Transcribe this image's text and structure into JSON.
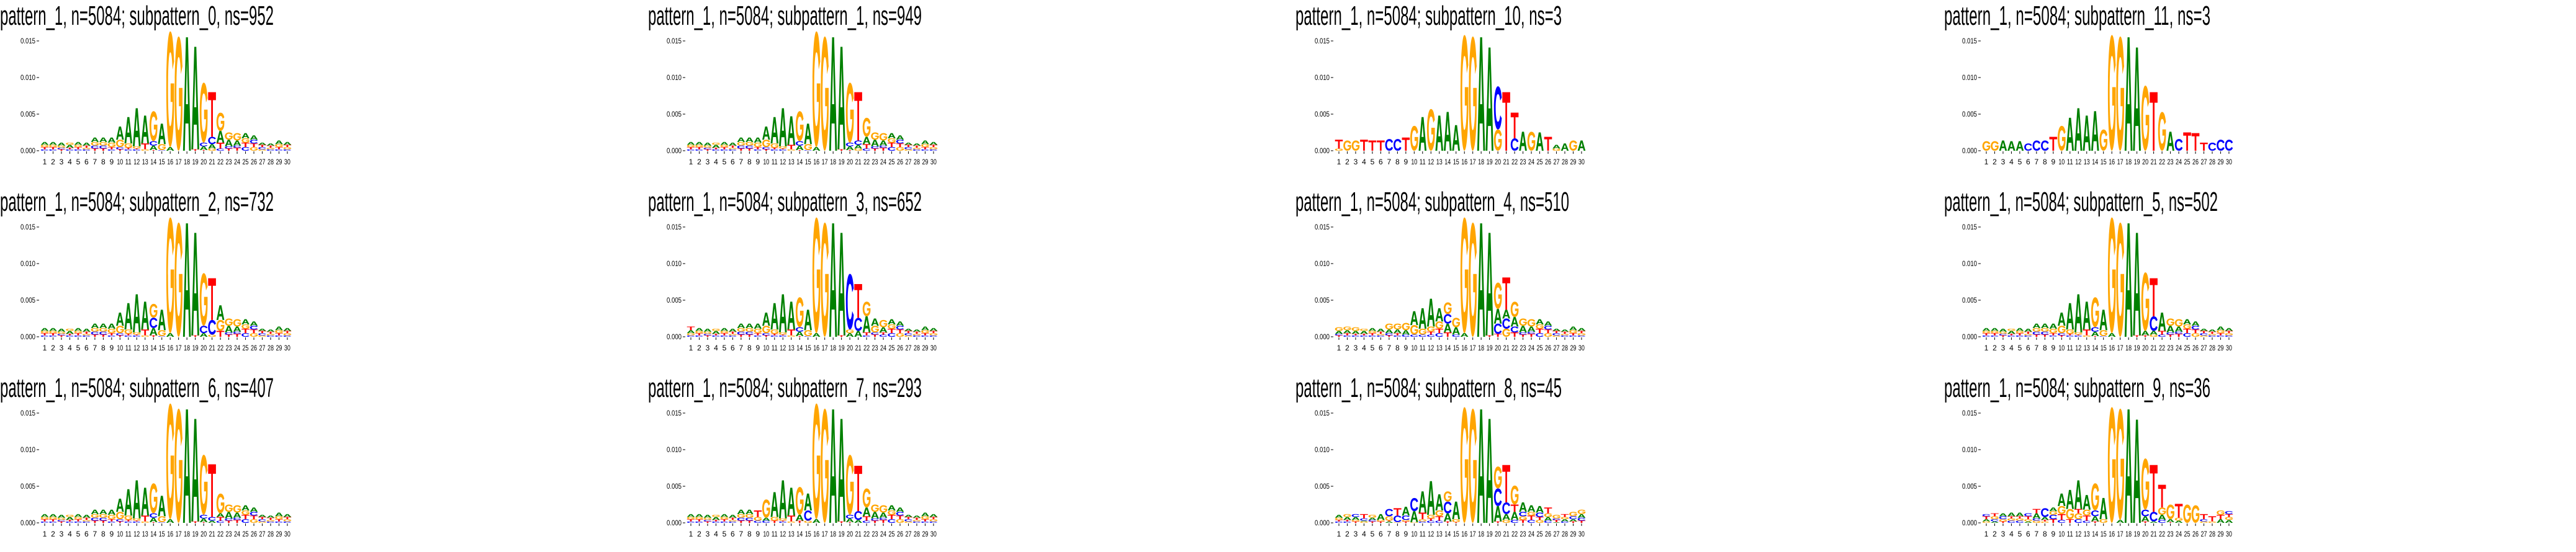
{
  "figure": {
    "grid_order": [
      "subpattern_0",
      "subpattern_1",
      "subpattern_10",
      "subpattern_11",
      "subpattern_2",
      "subpattern_3",
      "subpattern_4",
      "subpattern_5",
      "subpattern_6",
      "subpattern_7",
      "subpattern_8",
      "subpattern_9"
    ]
  },
  "colors": {
    "A": "#008000",
    "C": "#0000ff",
    "G": "#ffa500",
    "T": "#ff0000"
  },
  "axis": {
    "unit": 0.001,
    "ylim": [
      0,
      0.016
    ],
    "yticks": [
      0,
      0.005,
      0.01,
      0.015
    ],
    "ytick_labels": [
      "0.000",
      "0.005",
      "0.010",
      "0.015"
    ],
    "positions": [
      1,
      2,
      3,
      4,
      5,
      6,
      7,
      8,
      9,
      10,
      11,
      12,
      13,
      14,
      15,
      16,
      17,
      18,
      19,
      20,
      21,
      22,
      23,
      24,
      25,
      26,
      27,
      28,
      29,
      30
    ]
  },
  "default_stacks": [
    "C0.2 T0.3 G0.3 A0.4",
    "C0.2 T0.3 G0.3 A0.4",
    "T0.2 C0.2 G0.3 A0.4",
    "C0.2 T0.2 A0.4 G0.3",
    "C0.2 T0.3 G0.3 A0.4",
    "C0.2 G0.2 T0.3 A0.4",
    "T0.3 C0.4 G0.5 A0.6",
    "T0.3 C0.4 G0.5 A0.6",
    "C0.2 T0.3 G0.6 A0.7",
    "T0.2 C0.3 G1.0 A1.8",
    "C0.2 T0.2 G0.6 A3.6",
    "C0.2 T0.1 G0.3 A5.2",
    "G0.2 T0.8 A3.8",
    "T0.1 A0.6 C0.6 G4.1",
    "C0.1 G0.8 A2.8",
    "A0.5 G15.8",
    "G15.6",
    "A15.5",
    "T0.2 A14.0",
    "T0.1 A0.5 C0.5 G8.2",
    "G0.3 A0.6 C1.0 T6.1",
    "C0.3 T0.8 A1.6 G2.5",
    "T0.3 C0.3 A0.9 G1.0",
    "T0.4 C0.3 A0.7 G1.0",
    "C0.5 T0.6 G0.6 A0.7",
    "G0.5 T0.5 C0.5 A0.6",
    "G0.2 C0.3 T0.3 A0.3",
    "C0.2 G0.2 T0.3 A0.3",
    "C0.2 T0.3 G0.4 A0.5",
    "C0.2 G0.3 T0.3 A0.4"
  ],
  "chart_data": [
    {
      "type": "sequence_logo",
      "title": "pattern_1, n=5084; subpattern_0, ns=952",
      "overrides": {}
    },
    {
      "type": "sequence_logo",
      "title": "pattern_1, n=5084; subpattern_1, ns=949",
      "overrides": {
        "13": "G0.2 T0.6 A3.9",
        "21": "G0.3 A0.5 C0.6 T6.6",
        "22": "C0.3 T0.6 A1.0 G2.6"
      }
    },
    {
      "type": "sequence_logo",
      "title": "pattern_1, n=5084; subpattern_10, ns=3",
      "stacks": [
        "G0.3 T1.2",
        "G1.4",
        "G1.4",
        "T1.5",
        "T1.4",
        "T1.4",
        "C1.6",
        "C1.6",
        "T1.8",
        "G3.4",
        "A4.6",
        "G5.7",
        "A4.8",
        "A5.3",
        "A3.5",
        "G15.8",
        "G15.6",
        "A15.5",
        "A14.1",
        "G2.9 C5.9",
        "T8.0",
        "C1.7 T3.5",
        "A2.6",
        "G2.6",
        "A2.5",
        "T1.9",
        "G0.3 A0.5",
        "A1.0",
        "G1.4",
        "A1.4"
      ]
    },
    {
      "type": "sequence_logo",
      "title": "pattern_1, n=5084; subpattern_11, ns=3",
      "stacks": [
        "G1.3",
        "G1.3",
        "A1.4",
        "A1.3",
        "A1.3",
        "C1.0",
        "C1.4",
        "C1.4",
        "T1.9",
        "G3.4",
        "A4.5",
        "A5.8",
        "A4.8",
        "A5.4",
        "G2.9",
        "G15.8",
        "G15.6",
        "A15.5",
        "A14.1",
        "G8.9",
        "T8.0",
        "G5.3",
        "A2.6",
        "C1.6",
        "T2.5",
        "T2.4",
        "T1.1",
        "C1.1",
        "C1.5",
        "C1.5"
      ]
    },
    {
      "type": "sequence_logo",
      "title": "pattern_1, n=5084; subpattern_2, ns=732",
      "overrides": {
        "14": "T0.2 A1.0 C1.4 G1.9",
        "20": "A0.5 C1.0 G7.2",
        "21": "G0.3 C2.0 T5.7",
        "22": "T0.8 G1.5 A2.0"
      }
    },
    {
      "type": "sequence_logo",
      "title": "pattern_1, n=5084; subpattern_3, ns=652",
      "overrides": {
        "1": "C0.2 G0.3 A0.4 T0.5",
        "20": "A0.5 G0.5 C7.6",
        "21": "A0.8 C1.8 T4.6",
        "22": "C0.2 T0.4 A2.2 G2.0",
        "23": "T0.3 C0.3 G0.9 A1.0",
        "24": "C0.3 T0.3 A0.7 G1.0"
      }
    },
    {
      "type": "sequence_logo",
      "title": "pattern_1, n=5084; subpattern_4, ns=510",
      "overrides": {
        "1": "T0.2 C0.2 A0.4 G0.5",
        "2": "C0.2 T0.3 A0.4 G0.5",
        "3": "C0.2 T0.2 A0.4 G0.5",
        "7": "T0.2 C0.3 A0.5 G0.8",
        "8": "C0.2 T0.3 A0.5 G0.8",
        "9": "C0.3 A0.6 G1.0",
        "10": "C0.3 G1.3 A1.9",
        "11": "C0.3 G0.8 A2.8",
        "12": "C0.3 T0.4 G0.7 A3.8",
        "13": "C0.5 T0.6 G1.0 A1.8",
        "14": "T0.6 A1.2 C1.3 G1.6",
        "15": "C0.3 A1.0 G1.3",
        "20": "T0.4 C1.4 A2.0 G3.6",
        "21": "G1.1 C1.4 A1.2 T4.4",
        "22": "T0.6 C0.8 A1.3 G2.1"
      }
    },
    {
      "type": "sequence_logo",
      "title": "pattern_1, n=5084; subpattern_5, ns=502",
      "overrides": {
        "20": "T0.2 A0.6 G8.0",
        "21": "G0.3 A0.5 C2.0 T5.2",
        "22": "C0.3 T0.5 A2.5"
      }
    },
    {
      "type": "sequence_logo",
      "title": "pattern_1, n=5084; subpattern_6, ns=407",
      "overrides": {
        "21": "A0.3 C0.5 T7.2",
        "22": "C0.3 T0.5 A0.5 G2.7"
      }
    },
    {
      "type": "sequence_logo",
      "title": "pattern_1, n=5084; subpattern_7, ns=293",
      "overrides": {
        "9": "C0.3 G0.5 T0.9",
        "10": "C0.3 A0.4 G2.5",
        "11": "T0.3 G0.5 A3.4",
        "14": "T0.3 A0.8 G3.8",
        "15": "G0.3 C1.4 A2.3",
        "21": "A0.4 C1.2 T6.2",
        "22": "C0.3 T0.6 A1.2 G2.6"
      }
    },
    {
      "type": "sequence_logo",
      "title": "pattern_1, n=5084; subpattern_8, ns=45",
      "stacks": [
        "C0.2 T0.2 G0.3 A0.4",
        "C0.2 T0.2 A0.4 G0.4",
        "T0.2 G0.2 A0.4 C0.4",
        "G0.2 A0.1 C0.3 T0.6",
        "T0.2 C0.2 A0.3 G0.4",
        "T0.2 G0.2 A0.8",
        "A0.2 T0.1 G0.6 C1.0",
        "G0.1 C0.9 T1.0",
        "T0.2 G0.2 C0.6 A1.2",
        "G0.1 A1.5 C1.8",
        "C0.2 G0.3 T0.9 A2.9",
        "C0.3 T0.3 G0.5 A4.6",
        "C0.3 T0.6 G0.8 A2.2",
        "T0.2 A1.1 C1.6 G1.4",
        "T0.1 G0.4 A2.4",
        "G15.8",
        "G15.6",
        "A15.5",
        "A14.2",
        "T0.2 A2.1 C2.4 G3.0",
        "G0.4 A0.8 C1.6 T5.1",
        "C0.4 A1.1 T1.0 G2.6",
        "T0.4 G0.5 C0.6 A1.3",
        "C0.4 T0.6 G0.5 A0.9",
        "G0.4 T0.4 C0.6 A0.9",
        "C0.3 A0.5 G0.5 T0.8",
        "A0.1 T0.3 C0.2 G0.5",
        "C0.2 A0.3 G0.3 T0.4",
        "T0.2 A0.3 C0.4 G0.6",
        "T0.3 C0.4 A0.5 G0.6"
      ]
    },
    {
      "type": "sequence_logo",
      "title": "pattern_1, n=5084; subpattern_9, ns=36",
      "stacks": [
        "G0.2 A0.3 T0.4 C0.3",
        "A0.2 C0.3 G0.4 T0.4",
        "T0.2 G0.3 C0.4 A0.4",
        "C0.3 G0.3 T0.3 A0.5",
        "C0.3 G0.3 T0.3 A0.5",
        "A0.2 G0.3 T0.4 C0.4",
        "G0.3 C0.3 A0.7 T0.6",
        "G0.2 T0.2 A0.4 C1.2",
        "T0.5 C0.6 G0.5 A0.5",
        "C0.4 T0.8 G1.1 A1.7",
        "T0.5 G1.4 A2.6",
        "C0.5 G0.8 T0.6 A3.9",
        "C0.3 T0.7 G0.8 A2.0",
        "T0.2 A0.7 C0.8 G3.7",
        "G0.5 A2.9",
        "G15.8",
        "A0.4 G15.2",
        "A15.5",
        "A14.1",
        "T0.2 A0.7 C0.9 G7.0",
        "A0.2 C1.3 T6.4",
        "C0.4 A0.7 G1.0 T3.1",
        "T0.1 A0.4 G2.0",
        "A0.3 G0.4 T1.9",
        "G2.5",
        "G2.4",
        "G0.2 C0.3 T0.7",
        "G0.2 T0.7",
        "A0.5 T0.6 G0.6",
        "A0.4 G0.4 T0.4 C0.4"
      ]
    }
  ]
}
